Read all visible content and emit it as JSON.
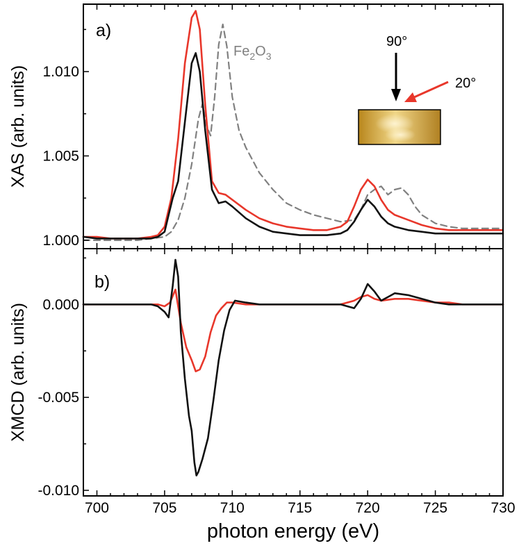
{
  "chart_data": [
    {
      "panel": "a)",
      "type": "line",
      "ylabel": "XAS (arb. units)",
      "xlabel": "",
      "xlim": [
        699,
        730
      ],
      "ylim": [
        0.9995,
        1.014
      ],
      "yticks": [
        1.0,
        1.005,
        1.01
      ],
      "ytick_labels": [
        "1.000",
        "1.005",
        "1.010"
      ],
      "annotations": {
        "fe2o3_main": "Fe",
        "fe2o3_sub1": "2",
        "fe2o3_mid": "O",
        "fe2o3_sub2": "3",
        "angle_90": "90°",
        "angle_20": "20°"
      },
      "series": [
        {
          "name": "20°",
          "color": "#e8372b",
          "style": "solid",
          "x": [
            699,
            700,
            701,
            702,
            703,
            704,
            704.5,
            705,
            705.5,
            706,
            706.5,
            707,
            707.3,
            707.6,
            708,
            708.5,
            709,
            709.5,
            710,
            711,
            712,
            713,
            714,
            715,
            716,
            717,
            718,
            718.5,
            719,
            719.5,
            720,
            720.5,
            721,
            721.5,
            722,
            723,
            724,
            725,
            726,
            727,
            728,
            729,
            730
          ],
          "y": [
            1.0002,
            1.0002,
            1.0001,
            1.0001,
            1.0001,
            1.0002,
            1.0003,
            1.0008,
            1.0025,
            1.006,
            1.0105,
            1.0132,
            1.0136,
            1.0125,
            1.008,
            1.0035,
            1.0028,
            1.0027,
            1.0024,
            1.0018,
            1.0013,
            1.001,
            1.0008,
            1.0007,
            1.0006,
            1.0006,
            1.0008,
            1.0011,
            1.002,
            1.003,
            1.0036,
            1.0032,
            1.0024,
            1.0018,
            1.0015,
            1.0012,
            1.0009,
            1.0007,
            1.0006,
            1.0006,
            1.0006,
            1.0006,
            1.0006
          ]
        },
        {
          "name": "90°",
          "color": "#111111",
          "style": "solid",
          "x": [
            699,
            700,
            701,
            702,
            703,
            704,
            704.5,
            705,
            705.3,
            705.6,
            706,
            706.5,
            707,
            707.3,
            707.6,
            708,
            708.5,
            709,
            709.5,
            710,
            711,
            712,
            713,
            714,
            715,
            716,
            717,
            718,
            718.5,
            719,
            719.5,
            720,
            720.5,
            721,
            721.5,
            722,
            723,
            724,
            725,
            726,
            727,
            728,
            729,
            730
          ],
          "y": [
            1.0002,
            1.0001,
            1.0001,
            1.0001,
            1.0001,
            1.0001,
            1.0002,
            1.0005,
            1.0015,
            1.0025,
            1.0035,
            1.007,
            1.0105,
            1.0111,
            1.01,
            1.0065,
            1.003,
            1.0022,
            1.0023,
            1.002,
            1.0013,
            1.0008,
            1.0005,
            1.0004,
            1.0003,
            1.0003,
            1.0003,
            1.0004,
            1.0006,
            1.0011,
            1.0018,
            1.0024,
            1.002,
            1.0014,
            1.001,
            1.0008,
            1.0006,
            1.0005,
            1.0004,
            1.0004,
            1.0004,
            1.0004,
            1.0004,
            1.0004
          ]
        },
        {
          "name": "Fe2O3",
          "color": "#808080",
          "style": "dashed",
          "x": [
            699,
            700,
            701,
            702,
            703,
            704,
            705,
            705.5,
            706,
            706.5,
            707,
            707.5,
            707.8,
            708.1,
            708.4,
            708.7,
            709,
            709.3,
            709.6,
            710,
            710.5,
            711,
            712,
            713,
            714,
            715,
            716,
            717,
            718,
            719,
            719.5,
            720,
            720.5,
            721,
            721.5,
            722,
            722.5,
            723,
            723.5,
            724,
            725,
            726,
            727,
            728,
            729,
            730
          ],
          "y": [
            1.0,
            1.0,
            1.0,
            1.0,
            1.0,
            1.0001,
            1.0002,
            1.0005,
            1.0012,
            1.0025,
            1.0045,
            1.0072,
            1.0081,
            1.0068,
            1.0062,
            1.0085,
            1.0116,
            1.0128,
            1.0115,
            1.0085,
            1.0065,
            1.0055,
            1.004,
            1.003,
            1.0022,
            1.0018,
            1.0015,
            1.0013,
            1.0011,
            1.0012,
            1.0018,
            1.0027,
            1.003,
            1.0032,
            1.0027,
            1.003,
            1.0031,
            1.0027,
            1.002,
            1.0015,
            1.001,
            1.0008,
            1.0007,
            1.0007,
            1.0007,
            1.0007
          ]
        }
      ]
    },
    {
      "panel": "b)",
      "type": "line",
      "ylabel": "XMCD (arb. units)",
      "xlabel": "photon energy (eV)",
      "xlim": [
        699,
        730
      ],
      "ylim": [
        -0.0103,
        0.003
      ],
      "yticks": [
        0.0,
        -0.005,
        -0.01
      ],
      "ytick_labels": [
        "0.000",
        "-0.005",
        "-0.010"
      ],
      "xticks": [
        700,
        705,
        710,
        715,
        720,
        725,
        730
      ],
      "xtick_labels": [
        "700",
        "705",
        "710",
        "715",
        "720",
        "725",
        "730"
      ],
      "series": [
        {
          "name": "20°",
          "color": "#e8372b",
          "style": "solid",
          "x": [
            699,
            700,
            701,
            702,
            703,
            704,
            704.5,
            705,
            705.4,
            705.8,
            706.2,
            706.6,
            707,
            707.3,
            707.6,
            708,
            708.4,
            708.8,
            709.2,
            709.6,
            710,
            711,
            712,
            713,
            714,
            715,
            716,
            717,
            718,
            718.5,
            719,
            719.5,
            720,
            720.5,
            721,
            722,
            723,
            724,
            725,
            726,
            727,
            728,
            729,
            730
          ],
          "y": [
            0.0,
            0.0,
            0.0,
            0.0,
            0.0,
            0.0,
            0.0,
            -0.0001,
            0.0001,
            0.0008,
            -0.001,
            -0.0023,
            -0.003,
            -0.0036,
            -0.0035,
            -0.0028,
            -0.0015,
            -0.0006,
            -0.0002,
            0.0001,
            0.0001,
            0.0,
            0.0,
            0.0,
            0.0,
            0.0,
            0.0,
            0.0,
            0.0,
            0.0001,
            0.0002,
            0.0004,
            0.0005,
            0.0003,
            0.0002,
            0.0003,
            0.0003,
            0.0002,
            0.0001,
            0.0001,
            0.0,
            0.0,
            0.0,
            0.0
          ]
        },
        {
          "name": "90°",
          "color": "#111111",
          "style": "solid",
          "x": [
            699,
            700,
            701,
            702,
            703,
            704,
            704.5,
            705,
            705.3,
            705.6,
            705.8,
            706,
            706.2,
            706.5,
            706.8,
            707,
            707.2,
            707.35,
            707.5,
            707.8,
            708.2,
            708.6,
            709,
            709.4,
            709.8,
            710.2,
            711,
            712,
            713,
            714,
            715,
            716,
            717,
            718,
            718.5,
            719,
            719.5,
            720,
            720.5,
            721,
            721.5,
            722,
            723,
            724,
            725,
            726,
            727,
            728,
            729,
            730
          ],
          "y": [
            0.0,
            0.0,
            0.0,
            0.0,
            0.0,
            0.0,
            -0.0001,
            -0.0004,
            -0.0007,
            0.001,
            0.0024,
            0.0015,
            -0.0015,
            -0.004,
            -0.006,
            -0.0068,
            -0.0085,
            -0.0092,
            -0.009,
            -0.0083,
            -0.0072,
            -0.0052,
            -0.003,
            -0.0014,
            -0.0003,
            0.0002,
            0.0001,
            0.0,
            0.0,
            0.0,
            0.0,
            0.0,
            0.0,
            0.0,
            -0.0001,
            -0.0002,
            0.0003,
            0.0011,
            0.0007,
            0.0002,
            0.0004,
            0.0006,
            0.0005,
            0.0003,
            0.0001,
            0.0,
            0.0,
            0.0,
            0.0,
            0.0
          ]
        }
      ]
    }
  ]
}
